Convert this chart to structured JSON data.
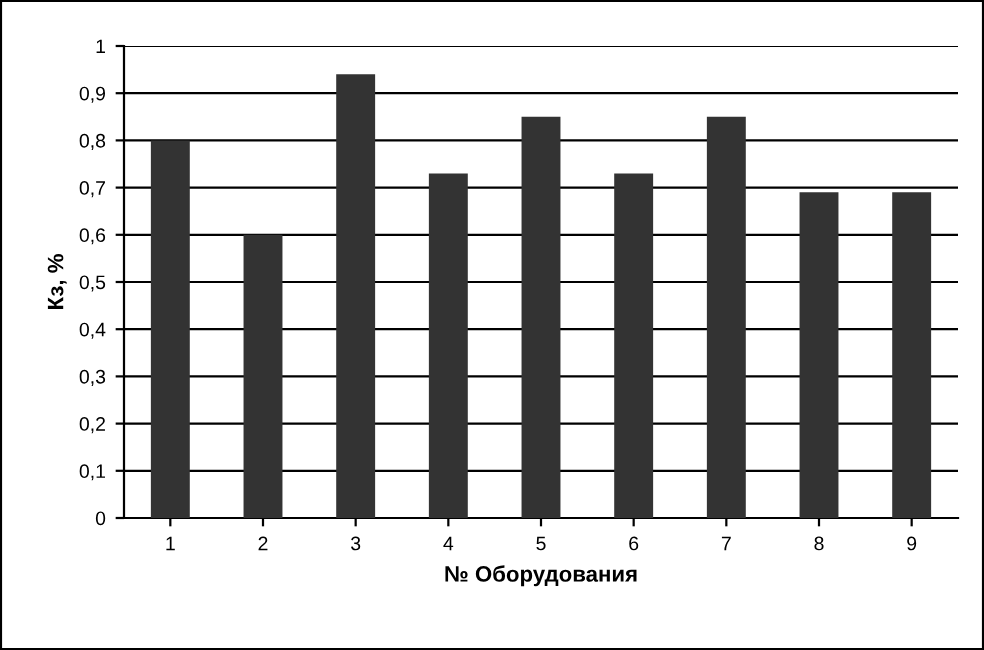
{
  "chart_data": {
    "type": "bar",
    "xlabel": "№ Оборудования",
    "ylabel": "Кз, %",
    "categories": [
      "1",
      "2",
      "3",
      "4",
      "5",
      "6",
      "7",
      "8",
      "9"
    ],
    "values": [
      0.8,
      0.6,
      0.94,
      0.73,
      0.85,
      0.73,
      0.85,
      0.69,
      0.69
    ],
    "color": "#333333",
    "ylim": [
      0,
      1
    ],
    "yticks": [
      0,
      {
        "value": 0.1,
        "label": "0,1"
      },
      {
        "value": 0.2,
        "label": "0,2"
      },
      {
        "value": 0.3,
        "label": "0,3"
      },
      {
        "value": 0.4,
        "label": "0,4"
      },
      {
        "value": 0.5,
        "label": "0,5"
      },
      {
        "value": 0.6,
        "label": "0,6"
      },
      {
        "value": 0.7,
        "label": "0,7"
      },
      {
        "value": 0.8,
        "label": "0,8"
      },
      {
        "value": 0.9,
        "label": "0,9"
      },
      1
    ],
    "grid": "y",
    "legend": false
  }
}
